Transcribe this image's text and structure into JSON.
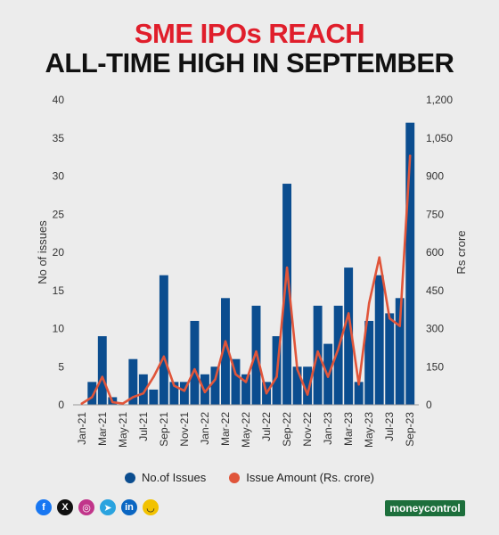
{
  "title_line1": "SME IPOs REACH",
  "title_line2": "ALL-TIME HIGH IN SEPTEMBER",
  "legend": [
    {
      "label": "No.of Issues",
      "color": "#0b4d8f"
    },
    {
      "label": "Issue Amount (Rs. crore)",
      "color": "#e0553a"
    }
  ],
  "brand": "moneycontrol",
  "social_icons": [
    "facebook-icon",
    "x-icon",
    "instagram-icon",
    "telegram-icon",
    "linkedin-icon",
    "snapchat-icon"
  ],
  "chart_data": {
    "type": "bar+line",
    "categories": [
      "Jan-21",
      "Feb-21",
      "Mar-21",
      "Apr-21",
      "May-21",
      "Jun-21",
      "Jul-21",
      "Aug-21",
      "Sep-21",
      "Oct-21",
      "Nov-21",
      "Dec-21",
      "Jan-22",
      "Feb-22",
      "Mar-22",
      "Apr-22",
      "May-22",
      "Jun-22",
      "Jul-22",
      "Aug-22",
      "Sep-22",
      "Oct-22",
      "Nov-22",
      "Dec-22",
      "Jan-23",
      "Feb-23",
      "Mar-23",
      "Apr-23",
      "May-23",
      "Jun-23",
      "Jul-23",
      "Aug-23",
      "Sep-23"
    ],
    "x_tick_labels": [
      "Jan-21",
      "Mar-21",
      "May-21",
      "Jul-21",
      "Sep-21",
      "Nov-21",
      "Jan-22",
      "Mar-22",
      "May-22",
      "Jul-22",
      "Sep-22",
      "Nov-22",
      "Jan-23",
      "Mar-23",
      "May-23",
      "Jul-23",
      "Sep-23"
    ],
    "series": [
      {
        "name": "No.of Issues",
        "type": "bar",
        "axis": "left",
        "color": "#0b4d8f",
        "values": [
          0,
          3,
          9,
          1,
          0,
          6,
          4,
          2,
          17,
          3,
          3,
          11,
          4,
          5,
          14,
          6,
          4,
          13,
          3,
          9,
          29,
          5,
          5,
          13,
          8,
          13,
          18,
          3,
          11,
          17,
          12,
          14,
          37
        ]
      },
      {
        "name": "Issue Amount (Rs. crore)",
        "type": "line",
        "axis": "right",
        "color": "#e0553a",
        "values": [
          5,
          30,
          110,
          10,
          5,
          30,
          45,
          110,
          190,
          75,
          55,
          140,
          50,
          100,
          250,
          120,
          90,
          210,
          45,
          110,
          540,
          140,
          40,
          210,
          110,
          220,
          360,
          80,
          400,
          580,
          340,
          310,
          980
        ]
      }
    ],
    "y_left": {
      "label": "No of issues",
      "ticks": [
        0,
        5,
        10,
        15,
        20,
        25,
        30,
        35,
        40
      ],
      "range": [
        0,
        40
      ]
    },
    "y_right": {
      "label": "Rs crore",
      "ticks": [
        "0",
        "150",
        "300",
        "450",
        "600",
        "750",
        "900",
        "1,050",
        "1,200"
      ],
      "range": [
        0,
        1200
      ]
    },
    "grid": false
  }
}
